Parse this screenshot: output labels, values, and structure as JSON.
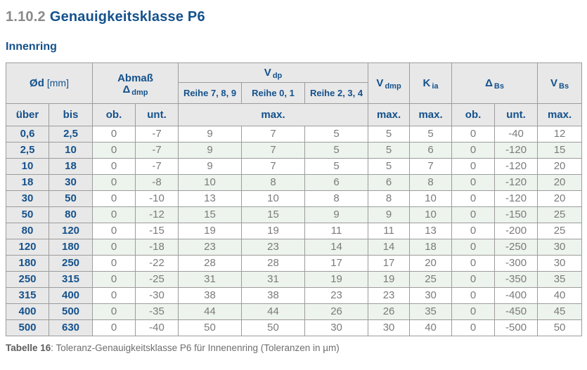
{
  "page": {
    "section_number": "1.10.2",
    "section_title": "Genauigkeitsklasse P6",
    "subtitle": "Innenring",
    "caption_label": "Tabelle 16",
    "caption_text": ": Toleranz-Genauigkeitsklasse P6 für Innenenring (Toleranzen in µm)"
  },
  "colors": {
    "accent_blue": "#14518c",
    "section_number_gray": "#8a8a8a",
    "header_background": "#e8e8e8",
    "alt_row_green": "#edf3ed",
    "border_gray": "#9c9c9c",
    "data_text_gray": "#7b7b7b"
  },
  "table": {
    "header": {
      "diameter": {
        "main": "Ød",
        "unit": "[mm]"
      },
      "abmass_line1": "Abmaß",
      "abmass_symbol": {
        "main": "Δ",
        "sub": "dmp"
      },
      "vdp": {
        "main": "V",
        "sub": "dp"
      },
      "reihe_789": "Reihe 7, 8, 9",
      "reihe_01": "Reihe 0, 1",
      "reihe_234": "Reihe 2, 3, 4",
      "vdmp": {
        "main": "V",
        "sub": "dmp"
      },
      "kia": {
        "main": "K",
        "sub": "ia"
      },
      "delta_bs": {
        "main": "Δ",
        "sub": "Bs"
      },
      "vbs": {
        "main": "V",
        "sub": "Bs"
      },
      "col_ueber": "über",
      "col_bis": "bis",
      "col_ob": "ob.",
      "col_unt": "unt.",
      "col_max_vdp": "max.",
      "col_max_vdmp": "max.",
      "col_max_kia": "max.",
      "col_ob_bs": "ob.",
      "col_unt_bs": "unt.",
      "col_max_vbs": "max."
    },
    "rows": [
      [
        "0,6",
        "2,5",
        "0",
        "-7",
        "9",
        "7",
        "5",
        "5",
        "5",
        "0",
        "-40",
        "12"
      ],
      [
        "2,5",
        "10",
        "0",
        "-7",
        "9",
        "7",
        "5",
        "5",
        "6",
        "0",
        "-120",
        "15"
      ],
      [
        "10",
        "18",
        "0",
        "-7",
        "9",
        "7",
        "5",
        "5",
        "7",
        "0",
        "-120",
        "20"
      ],
      [
        "18",
        "30",
        "0",
        "-8",
        "10",
        "8",
        "6",
        "6",
        "8",
        "0",
        "-120",
        "20"
      ],
      [
        "30",
        "50",
        "0",
        "-10",
        "13",
        "10",
        "8",
        "8",
        "10",
        "0",
        "-120",
        "20"
      ],
      [
        "50",
        "80",
        "0",
        "-12",
        "15",
        "15",
        "9",
        "9",
        "10",
        "0",
        "-150",
        "25"
      ],
      [
        "80",
        "120",
        "0",
        "-15",
        "19",
        "19",
        "11",
        "11",
        "13",
        "0",
        "-200",
        "25"
      ],
      [
        "120",
        "180",
        "0",
        "-18",
        "23",
        "23",
        "14",
        "14",
        "18",
        "0",
        "-250",
        "30"
      ],
      [
        "180",
        "250",
        "0",
        "-22",
        "28",
        "28",
        "17",
        "17",
        "20",
        "0",
        "-300",
        "30"
      ],
      [
        "250",
        "315",
        "0",
        "-25",
        "31",
        "31",
        "19",
        "19",
        "25",
        "0",
        "-350",
        "35"
      ],
      [
        "315",
        "400",
        "0",
        "-30",
        "38",
        "38",
        "23",
        "23",
        "30",
        "0",
        "-400",
        "40"
      ],
      [
        "400",
        "500",
        "0",
        "-35",
        "44",
        "44",
        "26",
        "26",
        "35",
        "0",
        "-450",
        "45"
      ],
      [
        "500",
        "630",
        "0",
        "-40",
        "50",
        "50",
        "30",
        "30",
        "40",
        "0",
        "-500",
        "50"
      ]
    ]
  }
}
